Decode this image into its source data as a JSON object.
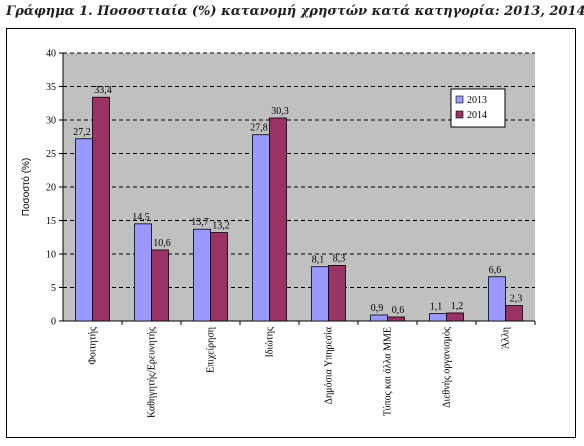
{
  "title": "Γράφημα 1. Ποσοστιαία (%) κατανομή χρηστών κατά κατηγορία: 2013, 2014",
  "chart_data": {
    "type": "bar",
    "title": "Γράφημα 1. Ποσοστιαία (%) κατανομή χρηστών κατά κατηγορία: 2013, 2014",
    "xlabel": "",
    "ylabel": "Ποσοστό (%)",
    "ylim": [
      0,
      40
    ],
    "yticks": [
      0,
      5,
      10,
      15,
      20,
      25,
      30,
      35,
      40
    ],
    "grid": true,
    "legend": "right",
    "categories": [
      "Φοιτητής",
      "Καθηγητής/Ερευνητής",
      "Επιχείρηση",
      "Ιδιώτης",
      "Δημόσια Υπηρεσία",
      "Τύπος και άλλα ΜΜΕ",
      "Διεθνής οργανισμός",
      "Άλλη"
    ],
    "series": [
      {
        "name": "2013",
        "color": "#9999ff",
        "values": [
          27.2,
          14.5,
          13.7,
          27.8,
          8.1,
          0.9,
          1.1,
          6.6
        ],
        "labels": [
          "27,2",
          "14,5",
          "13,7",
          "27,8",
          "8,1",
          "0,9",
          "1,1",
          "6,6"
        ]
      },
      {
        "name": "2014",
        "color": "#993366",
        "values": [
          33.4,
          10.6,
          13.2,
          30.3,
          8.3,
          0.6,
          1.2,
          2.3
        ],
        "labels": [
          "33,4",
          "10,6",
          "13,2",
          "30,3",
          "8,3",
          "0,6",
          "1,2",
          "2,3"
        ]
      }
    ],
    "plot_bg": "#c0c0c0"
  }
}
